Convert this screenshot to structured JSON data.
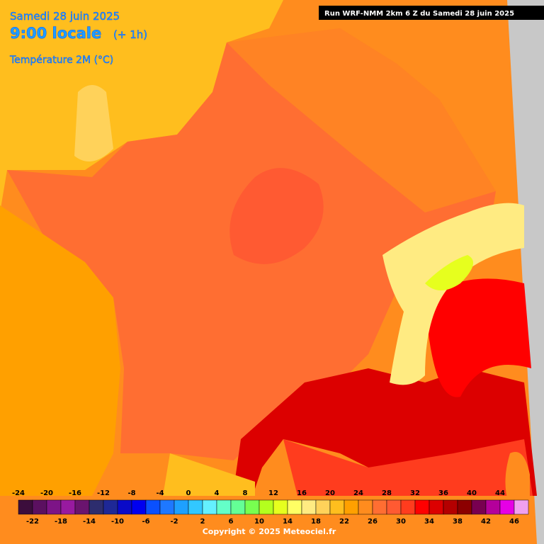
{
  "header": {
    "date": "Samedi 28 juin 2025",
    "time": "9:00 locale",
    "offset": "(+ 1h)",
    "variable": "Température 2M (°C)",
    "run": "Run WRF-NMM 2km 6 Z du Samedi 28 juin 2025"
  },
  "legend": {
    "steps": [
      {
        "value": -24,
        "color": "#3c0d3c"
      },
      {
        "value": -22,
        "color": "#5b1060"
      },
      {
        "value": -20,
        "color": "#7d1487"
      },
      {
        "value": -18,
        "color": "#981aa0"
      },
      {
        "value": -16,
        "color": "#6a146e"
      },
      {
        "value": -14,
        "color": "#2d2d6e"
      },
      {
        "value": -12,
        "color": "#1e2896"
      },
      {
        "value": -10,
        "color": "#0a0ac8"
      },
      {
        "value": -8,
        "color": "#0000f0"
      },
      {
        "value": -6,
        "color": "#0a50ff"
      },
      {
        "value": -4,
        "color": "#1e78ff"
      },
      {
        "value": -2,
        "color": "#1ea0ff"
      },
      {
        "value": 0,
        "color": "#32c8ff"
      },
      {
        "value": 2,
        "color": "#64f0ff"
      },
      {
        "value": 4,
        "color": "#64ffc8"
      },
      {
        "value": 6,
        "color": "#64ff96"
      },
      {
        "value": 8,
        "color": "#78ff50"
      },
      {
        "value": 10,
        "color": "#b4ff1e"
      },
      {
        "value": 12,
        "color": "#e6ff1e"
      },
      {
        "value": 14,
        "color": "#ffff64"
      },
      {
        "value": 16,
        "color": "#ffeb82"
      },
      {
        "value": 18,
        "color": "#ffd25a"
      },
      {
        "value": 20,
        "color": "#ffbe1e"
      },
      {
        "value": 22,
        "color": "#ffa000"
      },
      {
        "value": 24,
        "color": "#ff8c1e"
      },
      {
        "value": 26,
        "color": "#ff6e32"
      },
      {
        "value": 28,
        "color": "#ff5a32"
      },
      {
        "value": 30,
        "color": "#ff3c1e"
      },
      {
        "value": 32,
        "color": "#ff0000"
      },
      {
        "value": 34,
        "color": "#dc0000"
      },
      {
        "value": 36,
        "color": "#b40000"
      },
      {
        "value": 38,
        "color": "#8c0000"
      },
      {
        "value": 40,
        "color": "#780050"
      },
      {
        "value": 42,
        "color": "#b4009b"
      },
      {
        "value": 44,
        "color": "#e600e6"
      },
      {
        "value": 46,
        "color": "#f0a0f0"
      }
    ]
  },
  "footer": {
    "copyright": "Copyright © 2025 Meteociel.fr"
  }
}
